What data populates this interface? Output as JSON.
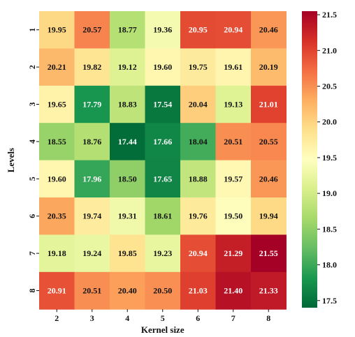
{
  "chart_data": {
    "type": "heatmap",
    "title": "",
    "xlabel": "Kernel size",
    "ylabel": "Levels",
    "x_categories": [
      "2",
      "3",
      "4",
      "5",
      "6",
      "7",
      "8"
    ],
    "y_categories": [
      "1",
      "2",
      "3",
      "4",
      "5",
      "6",
      "7",
      "8"
    ],
    "values": [
      [
        19.95,
        20.57,
        18.77,
        19.36,
        20.95,
        20.94,
        20.46
      ],
      [
        20.21,
        19.82,
        19.12,
        19.6,
        19.75,
        19.61,
        20.19
      ],
      [
        19.65,
        17.79,
        18.83,
        17.54,
        20.04,
        19.13,
        21.01
      ],
      [
        18.55,
        18.76,
        17.44,
        17.66,
        18.04,
        20.51,
        20.55
      ],
      [
        19.6,
        17.96,
        18.5,
        17.65,
        18.88,
        19.57,
        20.46
      ],
      [
        20.35,
        19.74,
        19.31,
        18.61,
        19.76,
        19.5,
        19.94
      ],
      [
        19.18,
        19.24,
        19.85,
        19.23,
        20.94,
        21.29,
        21.55
      ],
      [
        20.91,
        20.51,
        20.4,
        20.5,
        21.03,
        21.4,
        21.33
      ]
    ],
    "value_labels": [
      [
        "19.95",
        "20.57",
        "18.77",
        "19.36",
        "20.95",
        "20.94",
        "20.46"
      ],
      [
        "20.21",
        "19.82",
        "19.12",
        "19.60",
        "19.75",
        "19.61",
        "20.19"
      ],
      [
        "19.65",
        "17.79",
        "18.83",
        "17.54",
        "20.04",
        "19.13",
        "21.01"
      ],
      [
        "18.55",
        "18.76",
        "17.44",
        "17.66",
        "18.04",
        "20.51",
        "20.55"
      ],
      [
        "19.60",
        "17.96",
        "18.50",
        "17.65",
        "18.88",
        "19.57",
        "20.46"
      ],
      [
        "20.35",
        "19.74",
        "19.31",
        "18.61",
        "19.76",
        "19.50",
        "19.94"
      ],
      [
        "19.18",
        "19.24",
        "19.85",
        "19.23",
        "20.94",
        "21.29",
        "21.55"
      ],
      [
        "20.91",
        "20.51",
        "20.40",
        "20.50",
        "21.03",
        "21.40",
        "21.33"
      ]
    ],
    "colormap": "RdYlGn reversed (green = low, red = high)",
    "vmin": 17.4,
    "vmax": 21.55,
    "colorbar": {
      "ticks": [
        "17.5",
        "18.0",
        "18.5",
        "19.0",
        "19.5",
        "20.0",
        "20.5",
        "21.0",
        "21.5"
      ],
      "placement": "right"
    },
    "grid": false,
    "legend": "none"
  }
}
